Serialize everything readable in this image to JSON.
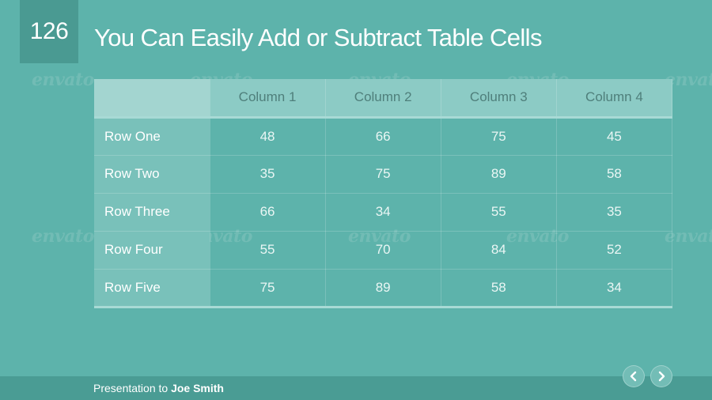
{
  "slide": {
    "number": "126",
    "title": "You Can Easily Add or Subtract Table Cells"
  },
  "table": {
    "corner": "",
    "columns": [
      "Column 1",
      "Column 2",
      "Column 3",
      "Column 4"
    ],
    "rows": [
      {
        "label": "Row One",
        "values": [
          "48",
          "66",
          "75",
          "45"
        ]
      },
      {
        "label": "Row Two",
        "values": [
          "35",
          "75",
          "89",
          "58"
        ]
      },
      {
        "label": "Row Three",
        "values": [
          "66",
          "34",
          "55",
          "35"
        ]
      },
      {
        "label": "Row Four",
        "values": [
          "55",
          "70",
          "84",
          "52"
        ]
      },
      {
        "label": "Row Five",
        "values": [
          "75",
          "89",
          "58",
          "34"
        ]
      }
    ]
  },
  "footer": {
    "prefix": "Presentation to",
    "name": "Joe Smith"
  },
  "watermark": {
    "text": "envato"
  },
  "nav": {
    "prev_icon": "chevron-left-icon",
    "next_icon": "chevron-right-icon"
  },
  "colors": {
    "background": "#5db3ab",
    "accent": "#4a9a92",
    "header_cell": "#8ccbc5",
    "row_label_cell": "#79c1ba"
  }
}
